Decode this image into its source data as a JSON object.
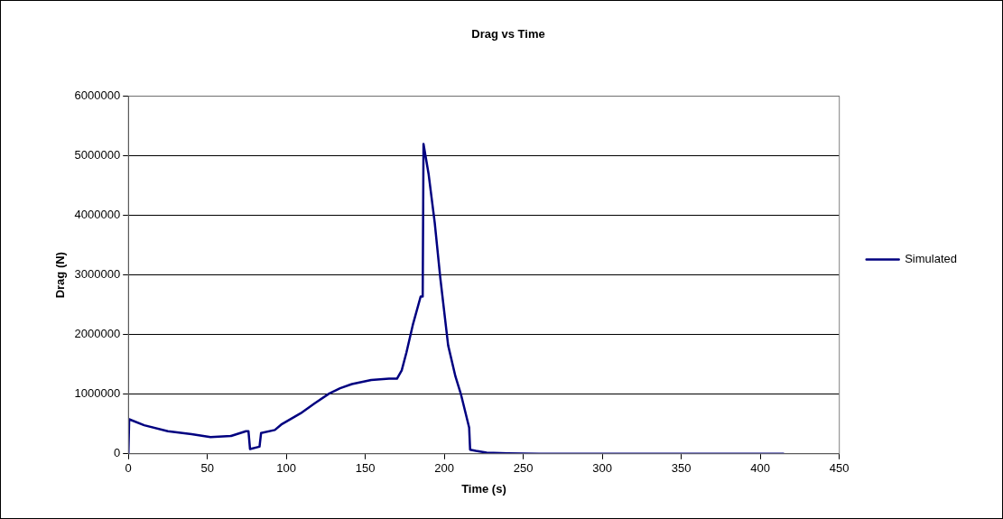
{
  "chart_data": {
    "type": "line",
    "title": "Drag vs Time",
    "xlabel": "Time (s)",
    "ylabel": "Drag (N)",
    "xlim": [
      0,
      450
    ],
    "xticks": [
      0,
      50,
      100,
      150,
      200,
      250,
      300,
      350,
      400,
      450
    ],
    "ylim": [
      0,
      6000000
    ],
    "yticks": [
      0,
      1000000,
      2000000,
      3000000,
      4000000,
      5000000,
      6000000
    ],
    "grid": "y",
    "legend": "right",
    "marker": "none",
    "line_style": "solid",
    "series": [
      {
        "name": "Simulated",
        "color": "#000080",
        "x": [
          0,
          0.5,
          10,
          25,
          40,
          52,
          65,
          74.4,
          76,
          77,
          83,
          84,
          92.7,
          96.7,
          109,
          118,
          127,
          134,
          141.5,
          153.7,
          165,
          170,
          173,
          176,
          180,
          185,
          186.3,
          186.8,
          190,
          193.9,
          197.4,
          202.4,
          207,
          210.6,
          215.7,
          216.3,
          220,
          226.8,
          240,
          260,
          300,
          350,
          415
        ],
        "values": [
          0,
          580000,
          480000,
          380000,
          330000,
          280000,
          300000,
          380000,
          380000,
          80000,
          120000,
          350000,
          400000,
          490000,
          680000,
          850000,
          1010000,
          1100000,
          1170000,
          1240000,
          1260000,
          1260000,
          1400000,
          1700000,
          2160000,
          2640000,
          2640000,
          5200000,
          4700000,
          3880000,
          2960000,
          1820000,
          1300000,
          990000,
          440000,
          70000,
          50000,
          20000,
          10000,
          0,
          0,
          0,
          0
        ]
      }
    ]
  }
}
